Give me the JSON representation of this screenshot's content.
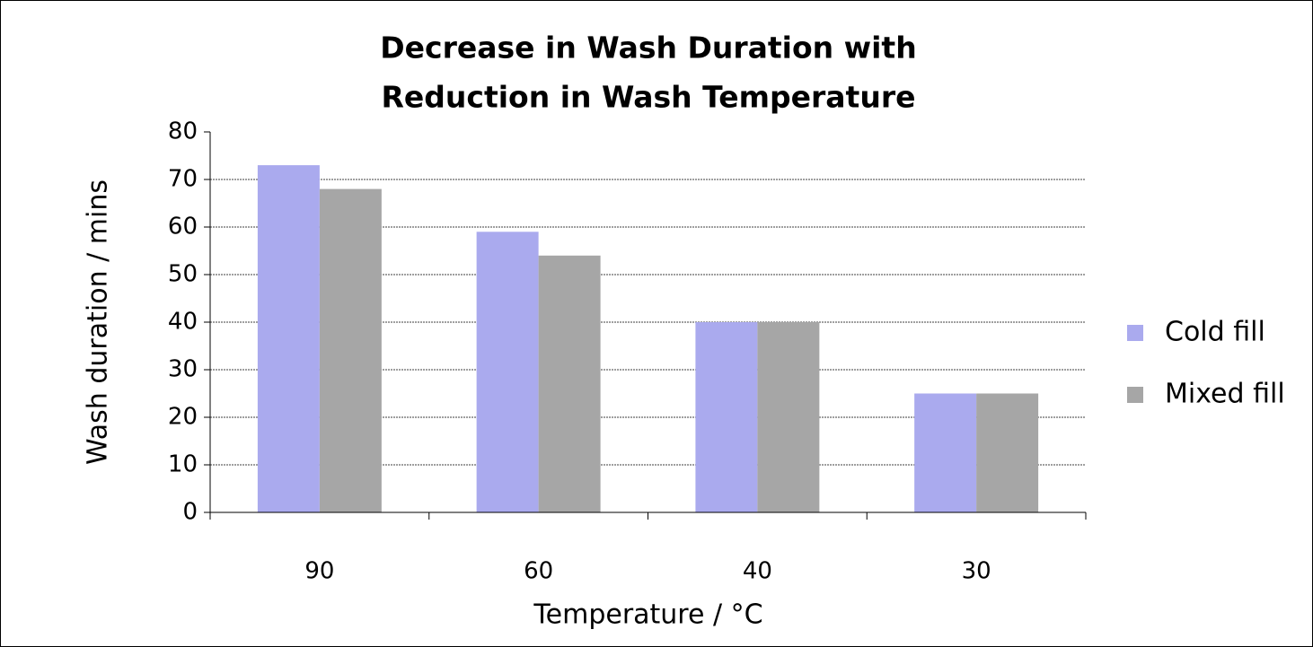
{
  "chart_data": {
    "type": "bar",
    "title": [
      "Decrease in Wash Duration with",
      "Reduction in Wash Temperature"
    ],
    "x_label": "Temperature / °C",
    "y_label": "Wash duration / mins",
    "categories": [
      "90",
      "60",
      "40",
      "30"
    ],
    "series": [
      {
        "name": "Cold fill",
        "color": "#aaaaee",
        "values": [
          73,
          59,
          40,
          25
        ]
      },
      {
        "name": "Mixed fill",
        "color": "#a6a6a6",
        "values": [
          68,
          54,
          40,
          25
        ]
      }
    ],
    "ylim": [
      0,
      80
    ],
    "yticks": [
      0,
      10,
      20,
      30,
      40,
      50,
      60,
      70,
      80
    ],
    "grid": true,
    "legend": "right"
  }
}
